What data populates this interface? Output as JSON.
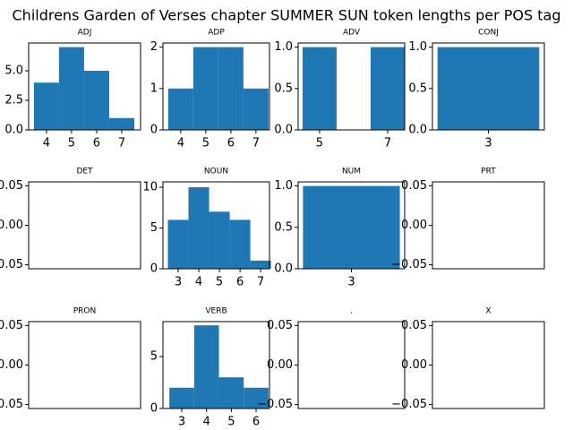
{
  "title": "Childrens Garden of Verses chapter SUMMER SUN token lengths per POS tag",
  "chart_data": [
    {
      "type": "histogram",
      "title": "ADJ",
      "color": "#1f77b4",
      "bins": [
        3.5,
        4.5,
        5.5,
        6.5,
        7.5
      ],
      "values": [
        4,
        7,
        5,
        1
      ],
      "xlim": [
        3.29,
        7.75
      ],
      "xticks": [
        4,
        5,
        6,
        7
      ],
      "ylim": [
        0,
        7.35
      ],
      "yticks": [
        {
          "value": 0,
          "label": "0.0"
        },
        {
          "value": 2.5,
          "label": "2.5"
        },
        {
          "value": 5,
          "label": "5.0"
        }
      ]
    },
    {
      "type": "histogram",
      "title": "ADP",
      "color": "#1f77b4",
      "bins": [
        3.5,
        4.5,
        5.5,
        6.5,
        7.5
      ],
      "values": [
        1,
        2,
        2,
        1
      ],
      "xlim": [
        3.29,
        7.54
      ],
      "xticks": [
        4,
        5,
        6,
        7
      ],
      "ylim": [
        0,
        2.1
      ],
      "yticks": [
        0,
        1,
        2
      ]
    },
    {
      "type": "histogram",
      "title": "ADV",
      "color": "#1f77b4",
      "bins": [
        4.5,
        5.5,
        6.5,
        7.5
      ],
      "values": [
        1,
        0,
        1
      ],
      "xlim": [
        4.37,
        7.5
      ],
      "xticks": [
        5,
        7
      ],
      "ylim": [
        0,
        1.05
      ],
      "yticks": [
        {
          "value": 0,
          "label": "0.0"
        },
        {
          "value": 0.5,
          "label": "0.5"
        },
        {
          "value": 1,
          "label": "1.0"
        }
      ]
    },
    {
      "type": "histogram",
      "title": "CONJ",
      "color": "#1f77b4",
      "bins": [
        2.5,
        3.5
      ],
      "values": [
        1
      ],
      "xlim": [
        2.45,
        3.55
      ],
      "xticks": [
        3
      ],
      "ylim": [
        0,
        1.05
      ],
      "yticks": [
        {
          "value": 0,
          "label": "0.0"
        },
        {
          "value": 0.5,
          "label": "0.5"
        },
        {
          "value": 1,
          "label": "1.0"
        }
      ]
    },
    {
      "type": "histogram",
      "title": "DET",
      "color": "#1f77b4",
      "bins": [],
      "values": [],
      "xlim": [
        0,
        1
      ],
      "xticks": [],
      "ylim": [
        -0.055,
        0.055
      ],
      "yticks": [
        {
          "value": -0.05,
          "label": "−0.05"
        },
        {
          "value": 0,
          "label": "0.00"
        },
        {
          "value": 0.05,
          "label": "0.05"
        }
      ]
    },
    {
      "type": "histogram",
      "title": "NOUN",
      "color": "#1f77b4",
      "bins": [
        2.5,
        3.5,
        4.5,
        5.5,
        6.5,
        7.5
      ],
      "values": [
        6,
        10,
        7,
        6,
        1
      ],
      "xlim": [
        2.26,
        7.43
      ],
      "xticks": [
        3,
        4,
        5,
        6,
        7
      ],
      "ylim": [
        0,
        10.66
      ],
      "yticks": [
        0,
        5,
        10
      ]
    },
    {
      "type": "histogram",
      "title": "NUM",
      "color": "#1f77b4",
      "bins": [
        2.5,
        3.5
      ],
      "values": [
        1
      ],
      "xlim": [
        2.45,
        3.55
      ],
      "xticks": [
        3
      ],
      "ylim": [
        0,
        1.05
      ],
      "yticks": [
        {
          "value": 0,
          "label": "0.0"
        },
        {
          "value": 0.5,
          "label": "0.5"
        },
        {
          "value": 1,
          "label": "1.0"
        }
      ]
    },
    {
      "type": "histogram",
      "title": "PRT",
      "color": "#1f77b4",
      "bins": [],
      "values": [],
      "xlim": [
        0,
        1
      ],
      "xticks": [],
      "ylim": [
        -0.055,
        0.055
      ],
      "yticks": [
        {
          "value": -0.05,
          "label": "−0.05"
        },
        {
          "value": 0,
          "label": "0.00"
        },
        {
          "value": 0.05,
          "label": "0.05"
        }
      ]
    },
    {
      "type": "histogram",
      "title": "PRON",
      "color": "#1f77b4",
      "bins": [],
      "values": [],
      "xlim": [
        0,
        1
      ],
      "xticks": [],
      "ylim": [
        -0.055,
        0.055
      ],
      "yticks": [
        {
          "value": -0.05,
          "label": "−0.05"
        },
        {
          "value": 0,
          "label": "0.00"
        },
        {
          "value": 0.05,
          "label": "0.05"
        }
      ]
    },
    {
      "type": "histogram",
      "title": "VERB",
      "color": "#1f77b4",
      "bins": [
        2.5,
        3.5,
        4.5,
        5.5,
        6.5
      ],
      "values": [
        2,
        8,
        3,
        2
      ],
      "xlim": [
        2.24,
        6.54
      ],
      "xticks": [
        3,
        4,
        5,
        6
      ],
      "ylim": [
        0,
        8.36
      ],
      "yticks": [
        0,
        5
      ]
    },
    {
      "type": "histogram",
      "title": ".",
      "color": "#1f77b4",
      "bins": [],
      "values": [],
      "xlim": [
        0,
        1
      ],
      "xticks": [],
      "ylim": [
        -0.055,
        0.055
      ],
      "yticks": [
        {
          "value": -0.05,
          "label": "−0.05"
        },
        {
          "value": 0,
          "label": "0.00"
        },
        {
          "value": 0.05,
          "label": "0.05"
        }
      ]
    },
    {
      "type": "histogram",
      "title": "X",
      "color": "#1f77b4",
      "bins": [],
      "values": [],
      "xlim": [
        0,
        1
      ],
      "xticks": [],
      "ylim": [
        -0.055,
        0.055
      ],
      "yticks": [
        {
          "value": -0.05,
          "label": "−0.05"
        },
        {
          "value": 0,
          "label": "0.00"
        },
        {
          "value": 0.05,
          "label": "0.05"
        }
      ]
    }
  ]
}
